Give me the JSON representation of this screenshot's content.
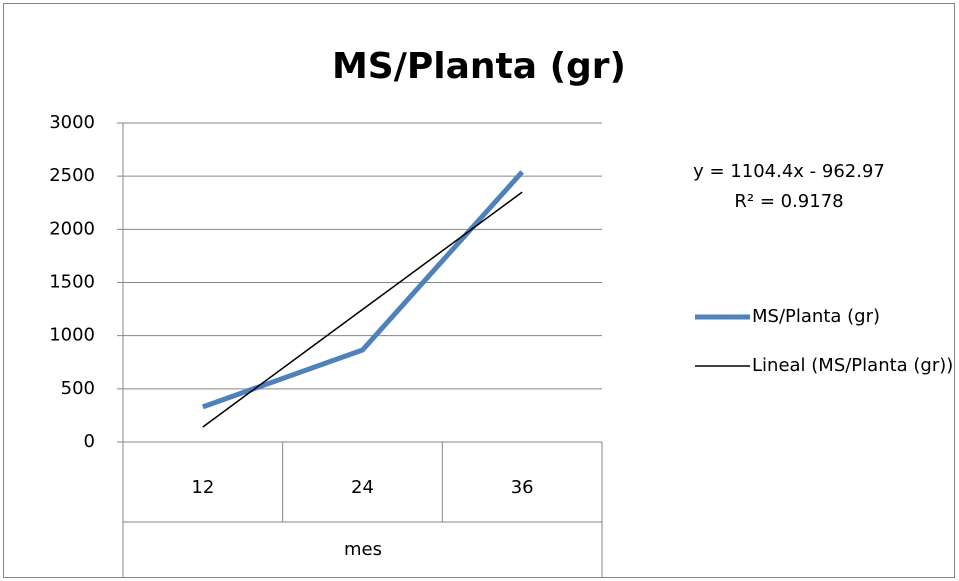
{
  "chart_data": {
    "type": "line",
    "title": "MS/Planta (gr)",
    "x_label": "mes",
    "categories": [
      "12",
      "24",
      "36"
    ],
    "series": [
      {
        "name": "MS/Planta (gr)",
        "color": "#4f81bd",
        "values": [
          330,
          865,
          2540
        ]
      },
      {
        "name": "Lineal (MS/Planta (gr))",
        "color": "#000000",
        "values": [
          141,
          1246,
          2350
        ]
      }
    ],
    "annotations": [
      "y = 1104.4x - 962.97",
      "R² = 0.9178"
    ],
    "ylim": [
      0,
      3000
    ],
    "yticks": [
      0,
      500,
      1000,
      1500,
      2000,
      2500,
      3000
    ],
    "grid": true,
    "legend": "right"
  }
}
